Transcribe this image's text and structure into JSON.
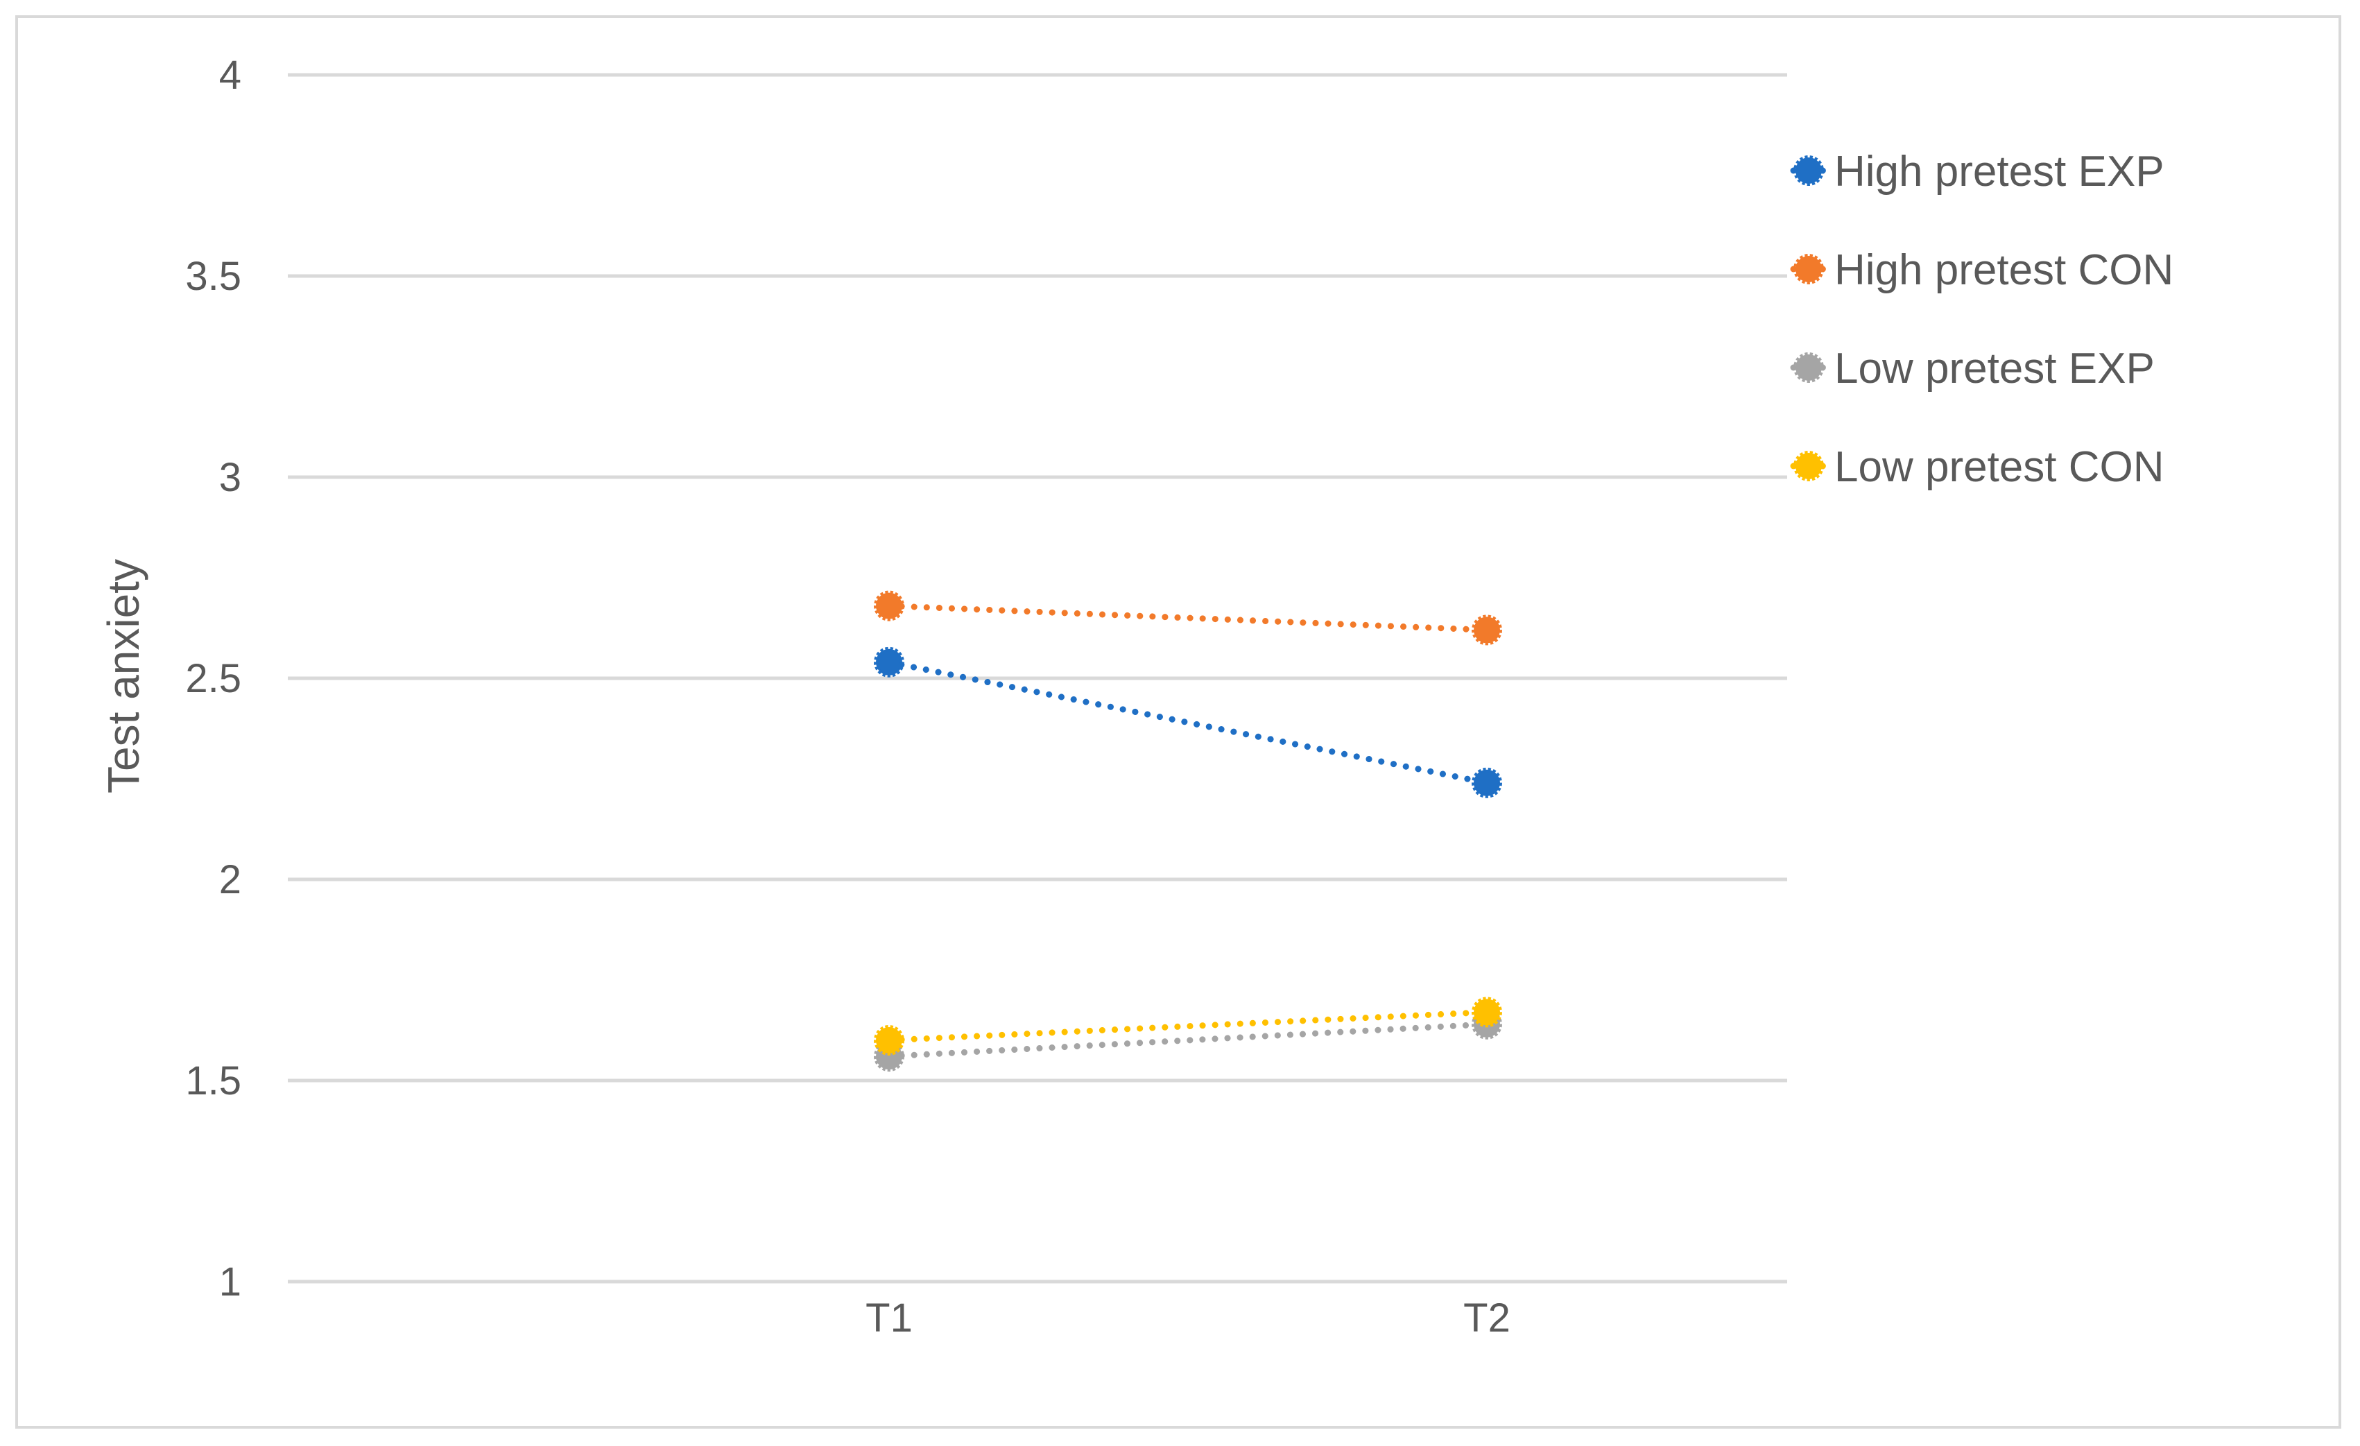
{
  "chart_data": {
    "type": "line",
    "title": "",
    "xlabel": "",
    "ylabel": "Test anxiety",
    "categories": [
      "T1",
      "T2"
    ],
    "ylim": [
      1,
      4
    ],
    "yticks": [
      "1",
      "1.5",
      "2",
      "2.5",
      "3",
      "3.5",
      "4"
    ],
    "ytick_values": [
      1,
      1.5,
      2,
      2.5,
      3,
      3.5,
      4
    ],
    "grid": "horizontal",
    "legend": "right",
    "line_style": "dotted",
    "series": [
      {
        "name": "High pretest EXP",
        "values": [
          2.54,
          2.24
        ],
        "color": "#1f6fc5"
      },
      {
        "name": "High pretest CON",
        "values": [
          2.68,
          2.62
        ],
        "color": "#f27a2a"
      },
      {
        "name": "Low pretest EXP",
        "values": [
          1.56,
          1.64
        ],
        "color": "#a5a5a5"
      },
      {
        "name": "Low pretest CON",
        "values": [
          1.6,
          1.67
        ],
        "color": "#ffc000"
      }
    ]
  }
}
